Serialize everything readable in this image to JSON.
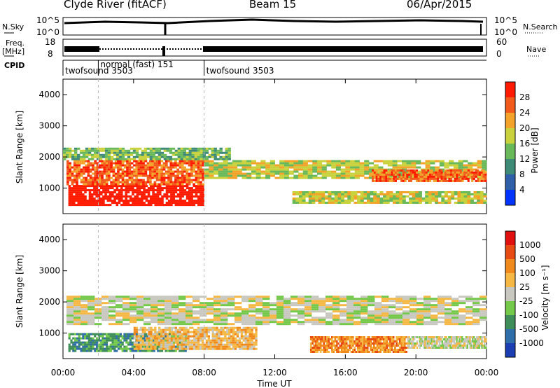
{
  "header": {
    "station": "Clyde River (fitACF)",
    "beam": "Beam 15",
    "date": "06/Apr/2015"
  },
  "summary_panels": {
    "nsky_label": "N.Sky",
    "nsky_ticks": [
      "10^5",
      "10^0"
    ],
    "nsearch_label": "N.Search",
    "nsearch_ticks": [
      "10^5",
      "10^0"
    ],
    "freq_label_line1": "Freq.",
    "freq_label_line2": "[MHz]",
    "freq_ticks": [
      "18",
      "8"
    ],
    "nave_label": "Nave",
    "nave_ticks": [
      "60",
      "0"
    ],
    "cpid_label": "CPID",
    "cpid_segments": [
      {
        "label": "twofsound 3503",
        "start_hour": 0,
        "end_hour": 2
      },
      {
        "label": "normal (fast) 151",
        "start_hour": 2,
        "end_hour": 8
      },
      {
        "label": "twofsound 3503",
        "start_hour": 8,
        "end_hour": 24
      }
    ]
  },
  "chart_data": [
    {
      "type": "heatmap",
      "name": "power",
      "ylabel": "Slant Range [km]",
      "ylim": [
        180,
        4500
      ],
      "yticks": [
        1000,
        2000,
        3000,
        4000
      ],
      "xlim": [
        0,
        24
      ],
      "colorbar_label": "Power [dB]",
      "colorbar_ticks": [
        "28",
        "24",
        "20",
        "16",
        "12",
        "8",
        "4"
      ],
      "colors": [
        "#0033ff",
        "#2e5fa8",
        "#3e8a76",
        "#69b85a",
        "#c9d23c",
        "#f3a32a",
        "#f25a1c",
        "#ff1a00"
      ],
      "bands": [
        {
          "t0": 0.3,
          "t1": 8.0,
          "r0": 450,
          "r1": 1100,
          "level": 8
        },
        {
          "t0": 0.2,
          "t1": 8.0,
          "r0": 1100,
          "r1": 1900,
          "level": 6
        },
        {
          "t0": 0.0,
          "t1": 9.5,
          "r0": 1900,
          "r1": 2300,
          "level": 3
        },
        {
          "t0": 8.0,
          "t1": 24.0,
          "r0": 1300,
          "r1": 1900,
          "level": 4
        },
        {
          "t0": 17.5,
          "t1": 24.0,
          "r0": 1200,
          "r1": 1600,
          "level": 6
        },
        {
          "t0": 13.0,
          "t1": 24.0,
          "r0": 500,
          "r1": 900,
          "level": 4
        }
      ]
    },
    {
      "type": "heatmap",
      "name": "velocity",
      "ylabel": "Slant Range [km]",
      "xlabel": "Time UT",
      "ylim": [
        180,
        4500
      ],
      "yticks": [
        1000,
        2000,
        3000,
        4000
      ],
      "xlim": [
        0,
        24
      ],
      "xtick_labels": [
        "00:00",
        "04:00",
        "08:00",
        "12:00",
        "16:00",
        "20:00",
        "00:00"
      ],
      "colorbar_label": "Velocity [m s⁻¹]",
      "colorbar_ticks": [
        "1000",
        "500",
        "100",
        "25",
        "-25",
        "-100",
        "-500",
        "-1000"
      ],
      "colors": [
        "#1b3fb3",
        "#2f6ea8",
        "#3f8e5a",
        "#74c84a",
        "#c8c8c0",
        "#f5b845",
        "#f08a1d",
        "#e84a14",
        "#e01010"
      ],
      "bands": [
        {
          "t0": 0.3,
          "t1": 7.0,
          "r0": 450,
          "r1": 1000,
          "level": 2
        },
        {
          "t0": 4.0,
          "t1": 11.0,
          "r0": 500,
          "r1": 1200,
          "level": 5
        },
        {
          "t0": 0.2,
          "t1": 24.0,
          "r0": 1300,
          "r1": 2200,
          "level": 4
        },
        {
          "t0": 14.0,
          "t1": 19.5,
          "r0": 400,
          "r1": 900,
          "level": 6
        },
        {
          "t0": 19.5,
          "t1": 24.0,
          "r0": 500,
          "r1": 900,
          "level": 4
        }
      ]
    }
  ]
}
